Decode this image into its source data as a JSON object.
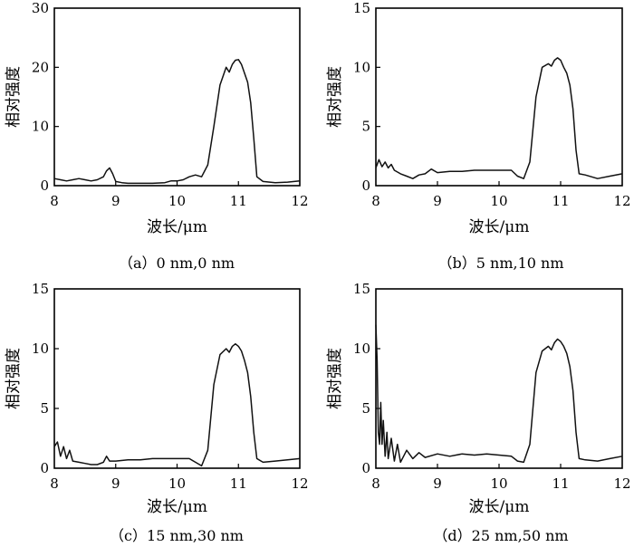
{
  "chart_data": [
    {
      "type": "line",
      "xlabel": "波长/μm",
      "ylabel": "相对强度",
      "caption": "（a）0 nm,0 nm",
      "xlim": [
        8,
        12
      ],
      "ylim": [
        0,
        30
      ],
      "xticks": [
        "8",
        "9",
        "10",
        "11",
        "12"
      ],
      "yticks": [
        "0",
        "10",
        "20",
        "30"
      ],
      "series": [
        {
          "x": [
            8.0,
            8.1,
            8.2,
            8.3,
            8.4,
            8.5,
            8.6,
            8.7,
            8.8,
            8.85,
            8.9,
            8.95,
            9.0,
            9.1,
            9.2,
            9.4,
            9.6,
            9.8,
            9.9,
            10.0,
            10.1,
            10.2,
            10.3,
            10.4,
            10.5,
            10.6,
            10.7,
            10.8,
            10.85,
            10.9,
            10.95,
            11.0,
            11.05,
            11.1,
            11.15,
            11.2,
            11.25,
            11.3,
            11.4,
            11.6,
            11.8,
            12.0
          ],
          "y": [
            1.2,
            1.0,
            0.8,
            1.0,
            1.2,
            1.0,
            0.8,
            1.0,
            1.5,
            2.5,
            3.0,
            2.0,
            0.7,
            0.5,
            0.4,
            0.4,
            0.4,
            0.5,
            0.8,
            0.8,
            1.0,
            1.5,
            1.8,
            1.5,
            3.5,
            10.0,
            17.0,
            20.0,
            19.2,
            20.5,
            21.2,
            21.3,
            20.5,
            19.0,
            17.5,
            14.0,
            8.0,
            1.5,
            0.7,
            0.5,
            0.6,
            0.8
          ]
        }
      ]
    },
    {
      "type": "line",
      "xlabel": "波长/μm",
      "ylabel": "相对强度",
      "caption": "（b）5 nm,10 nm",
      "xlim": [
        8,
        12
      ],
      "ylim": [
        0,
        15
      ],
      "xticks": [
        "8",
        "9",
        "10",
        "11",
        "12"
      ],
      "yticks": [
        "0",
        "5",
        "10",
        "15"
      ],
      "series": [
        {
          "x": [
            8.0,
            8.05,
            8.1,
            8.15,
            8.2,
            8.25,
            8.3,
            8.4,
            8.5,
            8.6,
            8.7,
            8.8,
            8.9,
            9.0,
            9.2,
            9.4,
            9.6,
            9.8,
            10.0,
            10.2,
            10.3,
            10.4,
            10.5,
            10.6,
            10.7,
            10.8,
            10.85,
            10.9,
            10.95,
            11.0,
            11.05,
            11.1,
            11.15,
            11.2,
            11.25,
            11.3,
            11.4,
            11.6,
            11.8,
            12.0
          ],
          "y": [
            1.5,
            2.2,
            1.6,
            2.0,
            1.5,
            1.8,
            1.3,
            1.0,
            0.8,
            0.6,
            0.9,
            1.0,
            1.4,
            1.1,
            1.2,
            1.2,
            1.3,
            1.3,
            1.3,
            1.3,
            0.8,
            0.6,
            2.0,
            7.5,
            10.0,
            10.3,
            10.1,
            10.6,
            10.8,
            10.6,
            10.0,
            9.5,
            8.5,
            6.5,
            3.0,
            1.0,
            0.9,
            0.6,
            0.8,
            1.0
          ]
        }
      ]
    },
    {
      "type": "line",
      "xlabel": "波长/μm",
      "ylabel": "相对强度",
      "caption": "（c）15 nm,30 nm",
      "xlim": [
        8,
        12
      ],
      "ylim": [
        0,
        15
      ],
      "xticks": [
        "8",
        "9",
        "10",
        "11",
        "12"
      ],
      "yticks": [
        "0",
        "5",
        "10",
        "15"
      ],
      "series": [
        {
          "x": [
            8.0,
            8.05,
            8.1,
            8.15,
            8.2,
            8.25,
            8.3,
            8.4,
            8.5,
            8.6,
            8.7,
            8.8,
            8.85,
            8.9,
            9.0,
            9.2,
            9.4,
            9.6,
            9.8,
            10.0,
            10.2,
            10.3,
            10.4,
            10.5,
            10.6,
            10.7,
            10.8,
            10.85,
            10.9,
            10.95,
            11.0,
            11.05,
            11.1,
            11.15,
            11.2,
            11.25,
            11.3,
            11.4,
            11.6,
            11.8,
            12.0
          ],
          "y": [
            1.8,
            2.2,
            1.0,
            1.8,
            0.8,
            1.5,
            0.6,
            0.5,
            0.4,
            0.3,
            0.3,
            0.5,
            1.0,
            0.6,
            0.6,
            0.7,
            0.7,
            0.8,
            0.8,
            0.8,
            0.8,
            0.5,
            0.2,
            1.5,
            7.0,
            9.5,
            10.0,
            9.7,
            10.2,
            10.4,
            10.2,
            9.8,
            9.0,
            8.0,
            6.0,
            3.0,
            0.8,
            0.5,
            0.6,
            0.7,
            0.8
          ]
        }
      ]
    },
    {
      "type": "line",
      "xlabel": "波长/μm",
      "ylabel": "相对强度",
      "caption": "（d）25 nm,50 nm",
      "xlim": [
        8,
        12
      ],
      "ylim": [
        0,
        15
      ],
      "xticks": [
        "8",
        "9",
        "10",
        "11",
        "12"
      ],
      "yticks": [
        "0",
        "5",
        "10",
        "15"
      ],
      "series": [
        {
          "x": [
            8.0,
            8.02,
            8.04,
            8.06,
            8.08,
            8.1,
            8.12,
            8.15,
            8.18,
            8.2,
            8.25,
            8.3,
            8.35,
            8.4,
            8.5,
            8.6,
            8.7,
            8.8,
            9.0,
            9.2,
            9.4,
            9.6,
            9.8,
            10.0,
            10.2,
            10.3,
            10.4,
            10.5,
            10.6,
            10.7,
            10.8,
            10.85,
            10.9,
            10.95,
            11.0,
            11.05,
            11.1,
            11.15,
            11.2,
            11.25,
            11.3,
            11.4,
            11.6,
            11.8,
            12.0
          ],
          "y": [
            12.0,
            9.0,
            3.0,
            2.0,
            5.5,
            2.0,
            4.0,
            1.0,
            3.0,
            0.8,
            2.5,
            0.6,
            2.0,
            0.5,
            1.5,
            0.8,
            1.3,
            0.9,
            1.2,
            1.0,
            1.2,
            1.1,
            1.2,
            1.1,
            1.0,
            0.6,
            0.5,
            2.0,
            8.0,
            9.8,
            10.2,
            9.9,
            10.5,
            10.8,
            10.6,
            10.2,
            9.6,
            8.5,
            6.5,
            3.0,
            0.8,
            0.7,
            0.6,
            0.8,
            1.0
          ]
        }
      ]
    }
  ]
}
